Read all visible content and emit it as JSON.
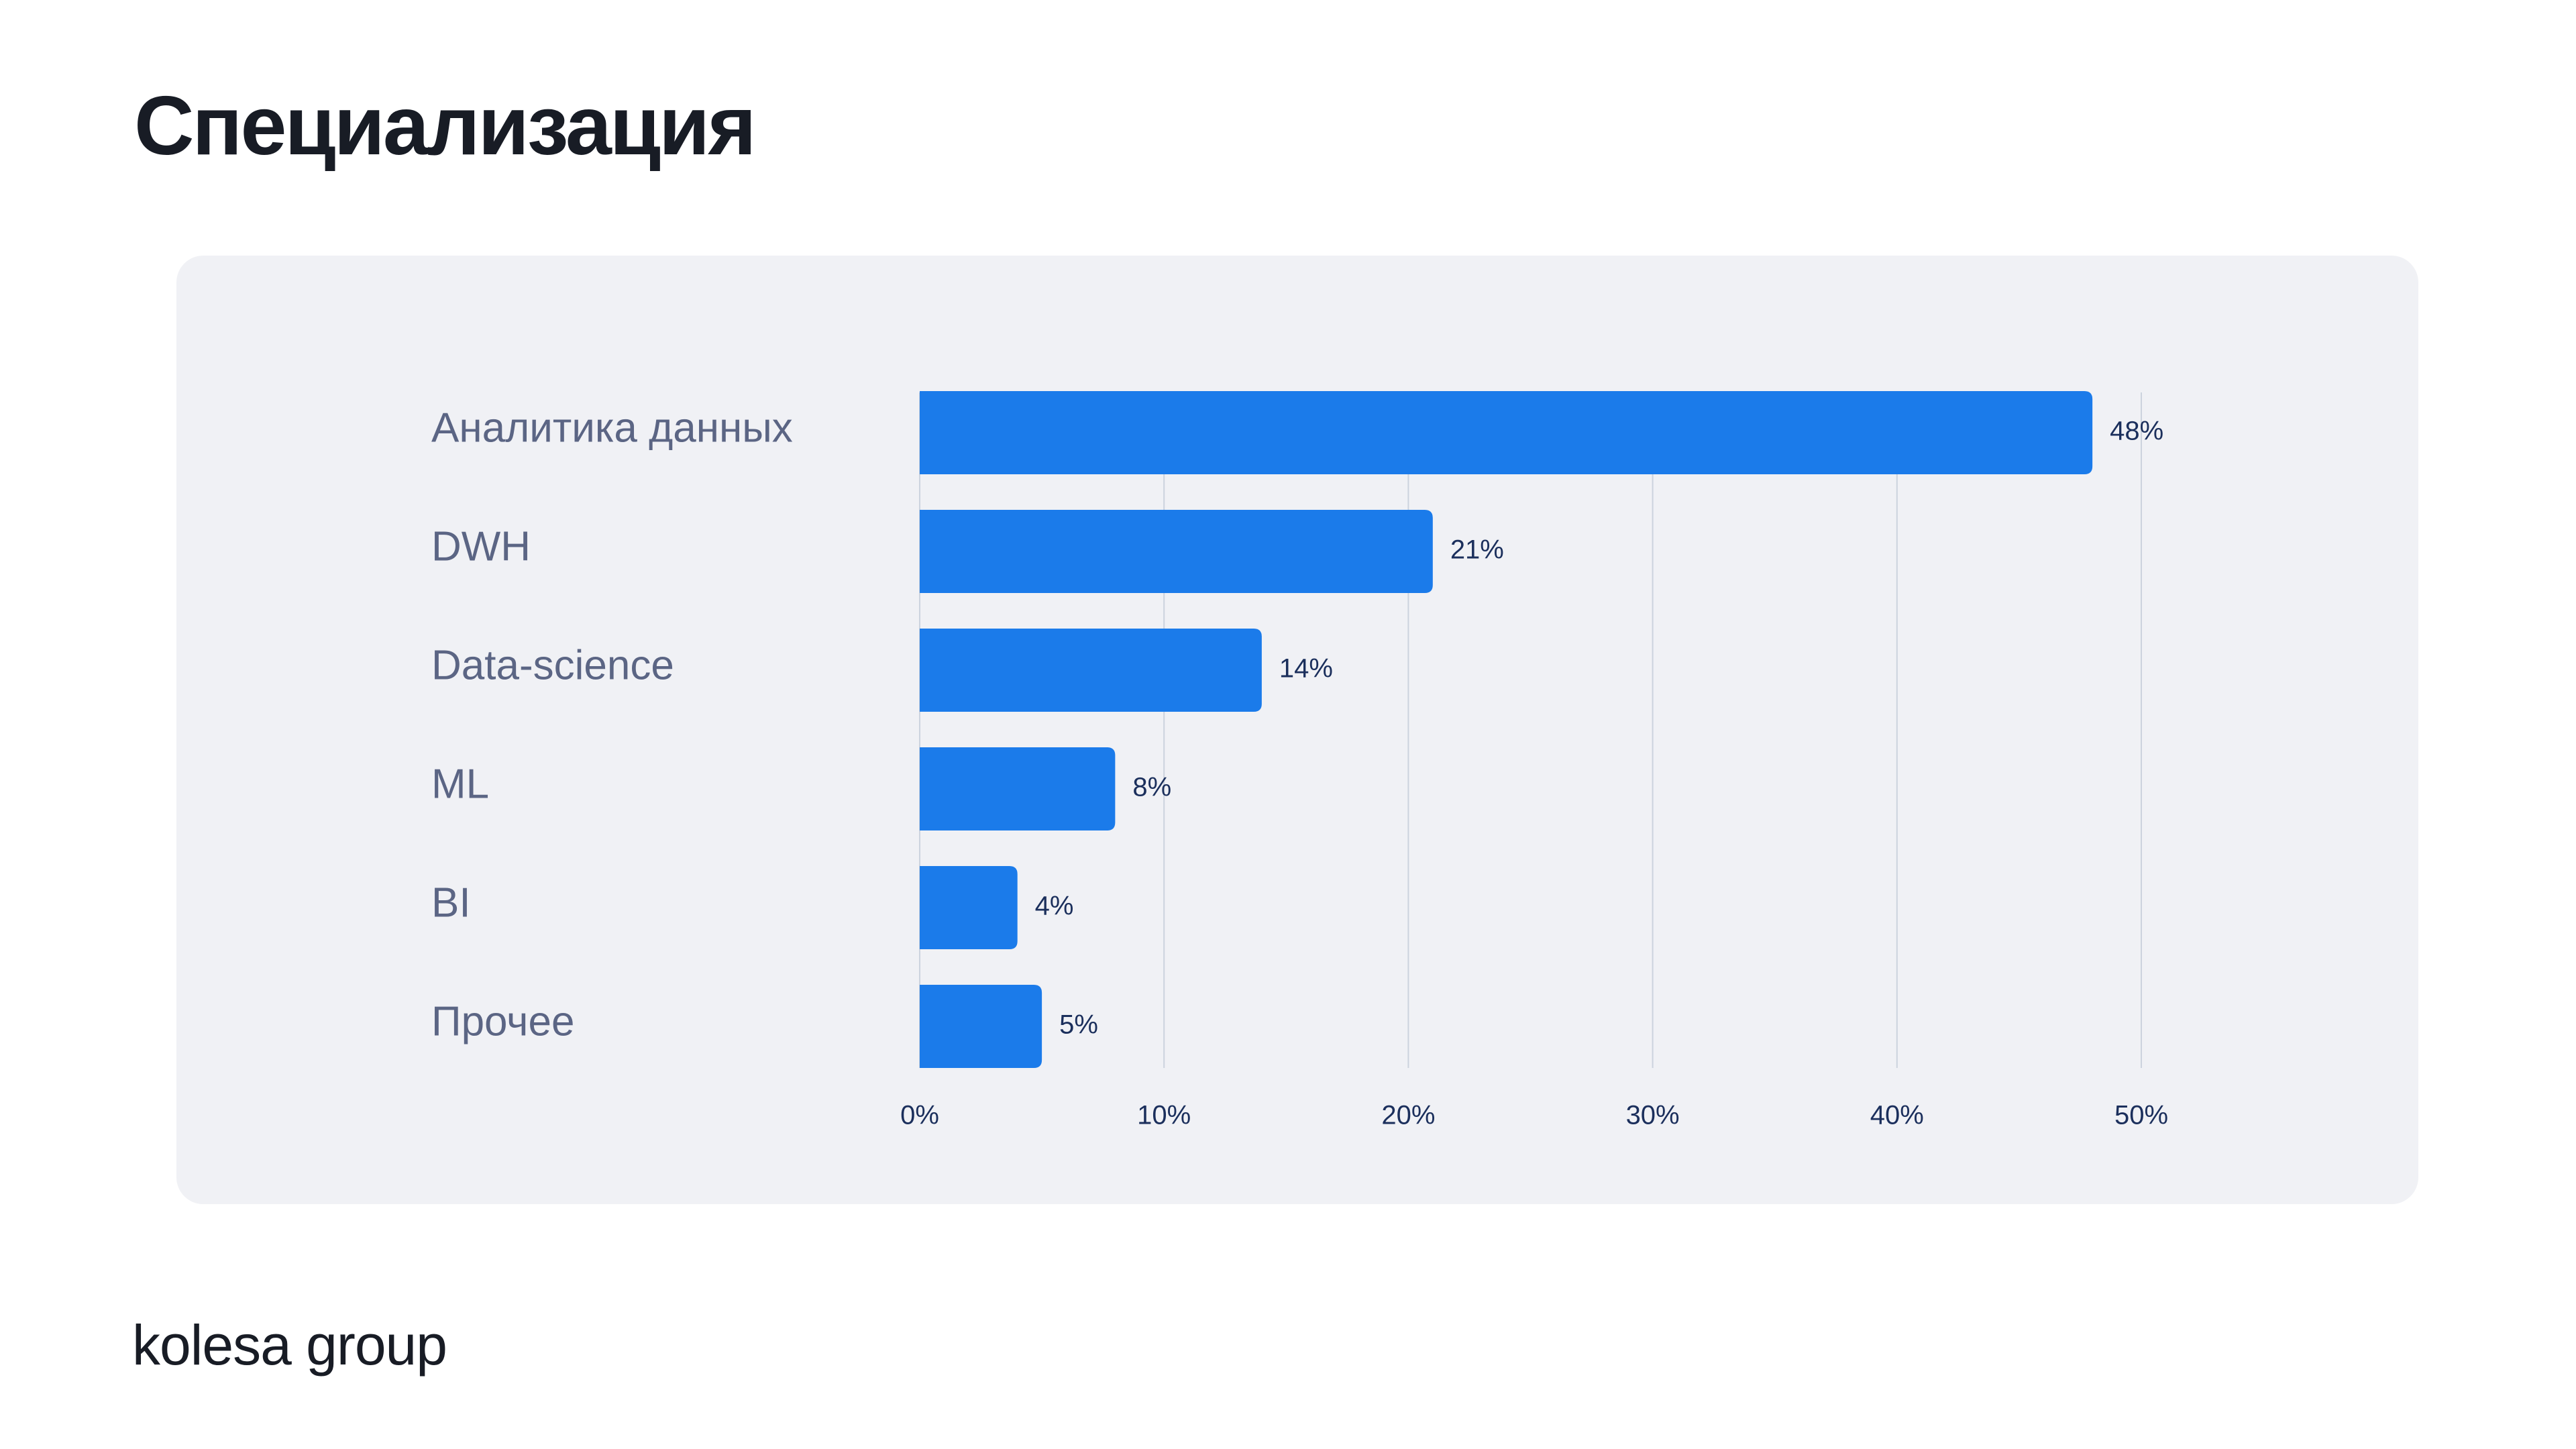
{
  "page": {
    "title": "Специализация",
    "logo_text": "kolesa group"
  },
  "colors": {
    "bar": "#1b7bea",
    "panel": "#f0f1f5",
    "category_label": "#5b6584",
    "value_label": "#1b2f5c",
    "tick_label": "#1b2f5c",
    "grid": "#ccd3de",
    "title": "#181c25"
  },
  "chart_data": {
    "type": "bar",
    "orientation": "horizontal",
    "title": "Специализация",
    "categories": [
      "Аналитика данных",
      "DWH",
      "Data-science",
      "ML",
      "BI",
      "Прочее"
    ],
    "values": [
      48,
      21,
      14,
      8,
      4,
      5
    ],
    "value_labels": [
      "48%",
      "21%",
      "14%",
      "8%",
      "4%",
      "5%"
    ],
    "xticks": [
      0,
      10,
      20,
      30,
      40,
      50
    ],
    "xtick_labels": [
      "0%",
      "10%",
      "20%",
      "30%",
      "40%",
      "50%"
    ],
    "xlim": [
      0,
      50
    ],
    "grid": true,
    "xlabel": "",
    "ylabel": ""
  }
}
